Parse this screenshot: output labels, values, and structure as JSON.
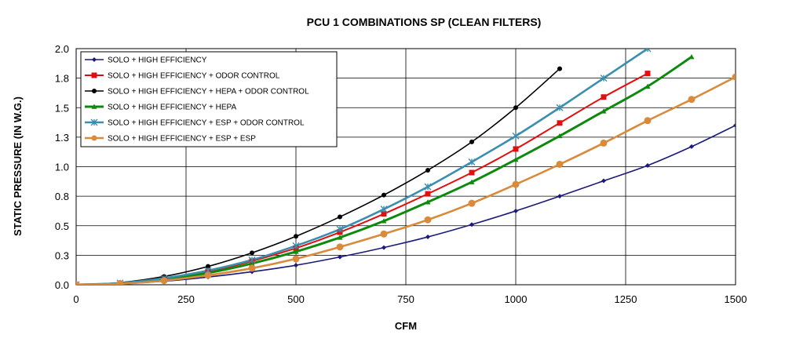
{
  "chart_data": {
    "type": "line",
    "title": "PCU 1 COMBINATIONS SP (CLEAN FILTERS)",
    "xlabel": "CFM",
    "ylabel": "STATIC PRESSURE (IN W.G.)",
    "xlim": [
      0,
      1500
    ],
    "ylim": [
      0,
      2.0
    ],
    "x_ticks": [
      0,
      250,
      500,
      750,
      1000,
      1250,
      1500
    ],
    "y_ticks": [
      0,
      0.25,
      0.5,
      0.75,
      1.0,
      1.25,
      1.5,
      1.75,
      2.0
    ],
    "y_tick_labels": [
      "0.0",
      "0.3",
      "0.5",
      "0.8",
      "1.0",
      "1.3",
      "1.5",
      "1.8",
      "2.0"
    ],
    "grid": "vertical and horizontal major gridlines",
    "legend_position": "top-left",
    "series": [
      {
        "name": "SOLO + HIGH EFFICIENCY",
        "color": "#1a1a7a",
        "marker": "diamond",
        "x": [
          0,
          100,
          200,
          300,
          400,
          500,
          600,
          700,
          800,
          900,
          1000,
          1100,
          1200,
          1300,
          1400,
          1500
        ],
        "y": [
          0.0,
          0.008,
          0.03,
          0.065,
          0.11,
          0.165,
          0.235,
          0.315,
          0.405,
          0.51,
          0.625,
          0.75,
          0.88,
          1.01,
          1.17,
          1.35
        ]
      },
      {
        "name": "SOLO + HIGH EFFICIENCY + ODOR CONTROL",
        "color": "#e01010",
        "marker": "square",
        "x": [
          0,
          100,
          200,
          300,
          400,
          500,
          600,
          700,
          800,
          900,
          1000,
          1100,
          1200,
          1300
        ],
        "y": [
          0.0,
          0.012,
          0.05,
          0.11,
          0.2,
          0.31,
          0.445,
          0.6,
          0.77,
          0.95,
          1.15,
          1.37,
          1.59,
          1.79
        ]
      },
      {
        "name": "SOLO + HIGH EFFICIENCY + HEPA + ODOR CONTROL",
        "color": "#000000",
        "marker": "circle",
        "x": [
          0,
          100,
          200,
          300,
          400,
          500,
          600,
          700,
          800,
          900,
          1000,
          1100
        ],
        "y": [
          0.0,
          0.018,
          0.07,
          0.155,
          0.27,
          0.41,
          0.575,
          0.76,
          0.97,
          1.21,
          1.5,
          1.83
        ]
      },
      {
        "name": "SOLO + HIGH EFFICIENCY + HEPA",
        "color": "#0d8a0d",
        "marker": "triangle",
        "x": [
          0,
          100,
          200,
          300,
          400,
          500,
          600,
          700,
          800,
          900,
          1000,
          1100,
          1200,
          1300,
          1400
        ],
        "y": [
          0.0,
          0.011,
          0.045,
          0.1,
          0.18,
          0.28,
          0.4,
          0.54,
          0.7,
          0.87,
          1.06,
          1.26,
          1.47,
          1.68,
          1.93
        ]
      },
      {
        "name": "SOLO + HIGH EFFICIENCY + ESP + ODOR CONTROL",
        "color": "#3a8fb0",
        "marker": "x",
        "x": [
          0,
          100,
          200,
          300,
          400,
          500,
          600,
          700,
          800,
          900,
          1000,
          1100,
          1200,
          1300
        ],
        "y": [
          0.0,
          0.014,
          0.055,
          0.12,
          0.21,
          0.33,
          0.47,
          0.64,
          0.83,
          1.04,
          1.26,
          1.5,
          1.75,
          2.0
        ]
      },
      {
        "name": "SOLO + HIGH EFFICIENCY + ESP + ESP",
        "color": "#d98a3a",
        "marker": "circle",
        "x": [
          0,
          100,
          200,
          300,
          400,
          500,
          600,
          700,
          800,
          900,
          1000,
          1100,
          1200,
          1300,
          1400,
          1500
        ],
        "y": [
          0.0,
          0.008,
          0.035,
          0.08,
          0.14,
          0.22,
          0.32,
          0.43,
          0.55,
          0.69,
          0.85,
          1.02,
          1.2,
          1.39,
          1.57,
          1.76
        ]
      }
    ]
  }
}
